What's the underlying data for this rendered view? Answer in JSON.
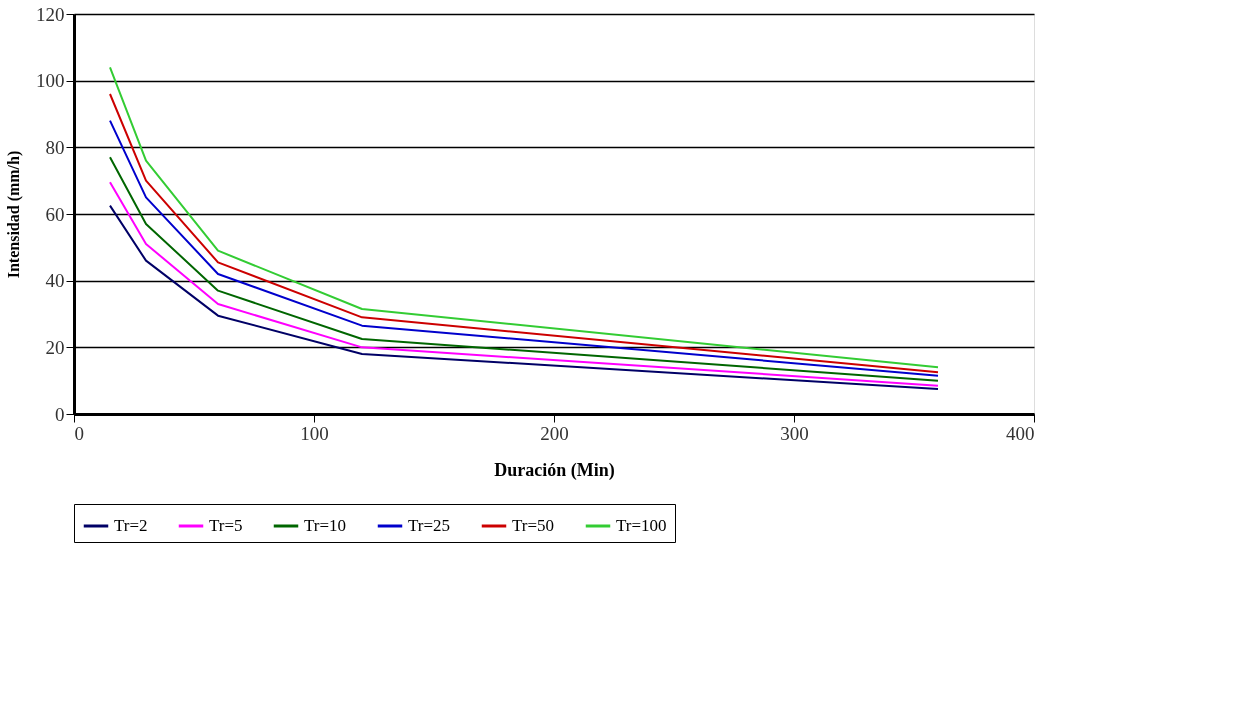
{
  "chart_data": {
    "type": "line",
    "xlabel": "Duración (Min)",
    "ylabel": "Intensidad (mm/h)",
    "x": [
      15,
      30,
      60,
      120,
      360
    ],
    "series": [
      {
        "name": "Tr=2",
        "color": "#000066",
        "values": [
          62.5,
          46,
          29.5,
          18,
          7.5
        ]
      },
      {
        "name": "Tr=5",
        "color": "#ff00ff",
        "values": [
          69.5,
          51,
          33,
          20,
          8.5
        ]
      },
      {
        "name": "Tr=10",
        "color": "#006600",
        "values": [
          77,
          57,
          37,
          22.5,
          10
        ]
      },
      {
        "name": "Tr=25",
        "color": "#0000cc",
        "values": [
          88,
          65,
          42,
          26.5,
          11.5
        ]
      },
      {
        "name": "Tr=50",
        "color": "#cc0000",
        "values": [
          96,
          70,
          45.5,
          29,
          12.5
        ]
      },
      {
        "name": "Tr=100",
        "color": "#33cc33",
        "values": [
          104,
          76,
          49,
          31.5,
          14
        ]
      }
    ],
    "xlim": [
      0,
      400
    ],
    "xticks": [
      0,
      100,
      200,
      300,
      400
    ],
    "ylim": [
      0,
      120
    ],
    "yticks": [
      0,
      20,
      40,
      60,
      80,
      100,
      120
    ],
    "grid": "y",
    "legend": "bottom",
    "marker": "none",
    "line_style": "solid"
  }
}
